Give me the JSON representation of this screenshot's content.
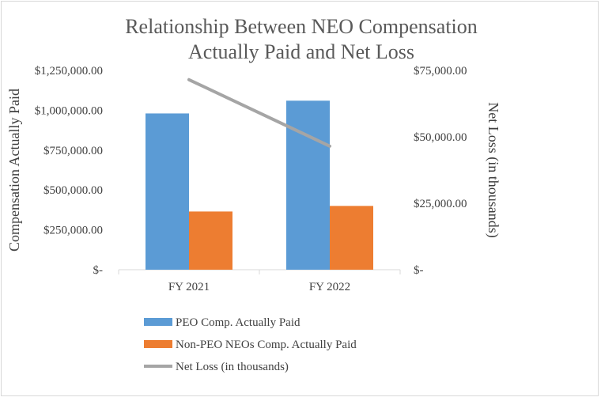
{
  "chart_data": {
    "type": "bar",
    "title_lines": [
      "Relationship  Between  NEO Compensation",
      "Actually  Paid and Net Loss"
    ],
    "categories": [
      "FY 2021",
      "FY 2022"
    ],
    "series": [
      {
        "name": "PEO Comp. Actually Paid",
        "type": "bar",
        "axis": "left",
        "color": "#5b9bd5",
        "values": [
          980000,
          1060000
        ]
      },
      {
        "name": "Non-PEO NEOs Comp. Actually Paid",
        "type": "bar",
        "axis": "left",
        "color": "#ed7d31",
        "values": [
          365000,
          400000
        ]
      },
      {
        "name": "Net Loss (in thousands)",
        "type": "line",
        "axis": "right",
        "color": "#a5a5a5",
        "values": [
          71500,
          46500
        ]
      }
    ],
    "left_axis": {
      "title": "Compensation Actually Paid",
      "ylim": [
        0,
        1250000
      ],
      "ticks": [
        0,
        250000,
        500000,
        750000,
        1000000,
        1250000
      ],
      "tick_labels": [
        "$-",
        "$250,000.00",
        "$500,000.00",
        "$750,000.00",
        "$1,000,000.00",
        "$1,250,000.00"
      ]
    },
    "right_axis": {
      "title": "Net Loss (in thousands)",
      "ylim": [
        0,
        75000
      ],
      "ticks": [
        0,
        25000,
        50000,
        75000
      ],
      "tick_labels": [
        "$-",
        "$25,000.00",
        "$50,000.00",
        "$75,000.00"
      ]
    },
    "grid": false,
    "legend_position": "bottom"
  }
}
